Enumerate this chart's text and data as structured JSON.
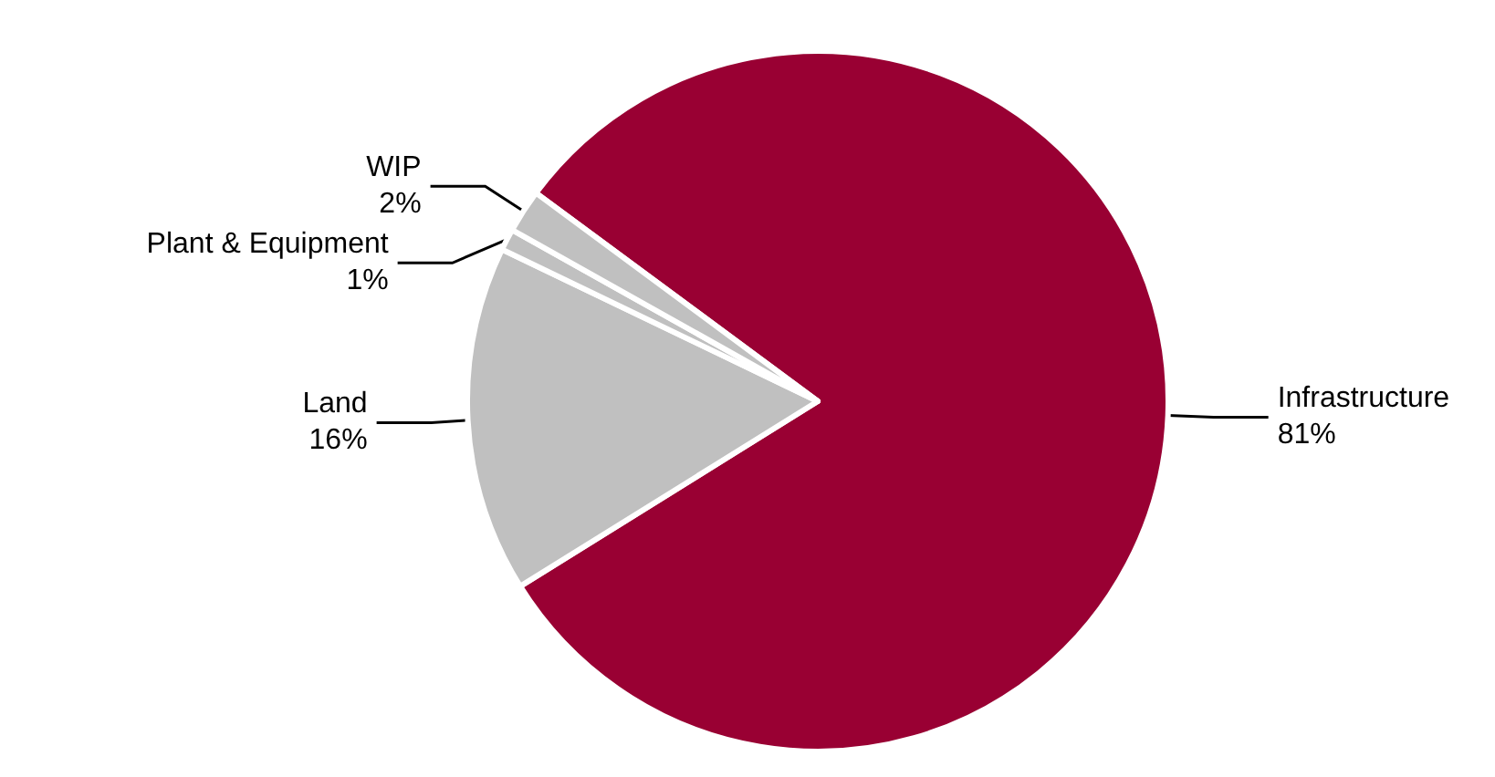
{
  "chart_data": {
    "type": "pie",
    "categories": [
      "Infrastructure",
      "Land",
      "Plant & Equipment",
      "WIP"
    ],
    "values": [
      81,
      16,
      1,
      2
    ],
    "colors": [
      "#990033",
      "#c0c0c0",
      "#c0c0c0",
      "#c0c0c0"
    ],
    "value_labels": [
      "81%",
      "16%",
      "1%",
      "2%"
    ],
    "legend": false
  }
}
